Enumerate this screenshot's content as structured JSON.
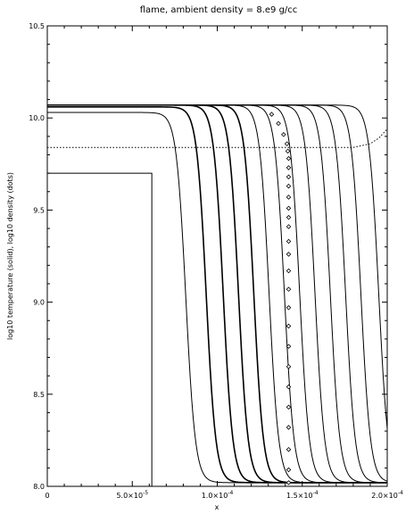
{
  "chart_data": {
    "type": "line",
    "title": "flame, ambient density = 8.e9 g/cc",
    "xlabel": "x",
    "ylabel": "log10 temperature (solid), log10 density (dots)",
    "xlim": [
      0,
      0.0002
    ],
    "ylim": [
      8.0,
      10.5
    ],
    "grid": false,
    "x_ticks": [
      {
        "value": 0,
        "mantissa": "0",
        "exponent": ""
      },
      {
        "value": 5e-05,
        "mantissa": "5.0×10",
        "exponent": "-5"
      },
      {
        "value": 0.0001,
        "mantissa": "1.0×10",
        "exponent": "-4"
      },
      {
        "value": 0.00015,
        "mantissa": "1.5×10",
        "exponent": "-4"
      },
      {
        "value": 0.0002,
        "mantissa": "2.0×10",
        "exponent": "-4"
      }
    ],
    "y_ticks": [
      {
        "value": 8.0,
        "label": "8.0"
      },
      {
        "value": 8.5,
        "label": "8.5"
      },
      {
        "value": 9.0,
        "label": "9.0"
      },
      {
        "value": 9.5,
        "label": "9.5"
      },
      {
        "value": 10.0,
        "label": "10.0"
      },
      {
        "value": 10.5,
        "label": "10.5"
      }
    ],
    "temperature_profiles": [
      {
        "front_x": 6.15e-05,
        "peak": 9.7,
        "floor": 8.0,
        "step": true
      },
      {
        "front_x": 8.15e-05,
        "peak": 10.03,
        "floor": 8.02
      },
      {
        "front_x": 9.35e-05,
        "peak": 10.06,
        "floor": 8.02
      },
      {
        "front_x": 0.0001035,
        "peak": 10.07,
        "floor": 8.02
      },
      {
        "front_x": 0.0001125,
        "peak": 10.07,
        "floor": 8.02
      },
      {
        "front_x": 0.0001215,
        "peak": 10.07,
        "floor": 8.02
      },
      {
        "front_x": 0.0001305,
        "peak": 10.07,
        "floor": 8.02
      },
      {
        "front_x": 0.0001395,
        "peak": 10.07,
        "floor": 8.02
      },
      {
        "front_x": 0.0001485,
        "peak": 10.07,
        "floor": 8.02
      },
      {
        "front_x": 0.0001575,
        "peak": 10.07,
        "floor": 8.02
      },
      {
        "front_x": 0.0001665,
        "peak": 10.07,
        "floor": 8.02
      },
      {
        "front_x": 0.0001755,
        "peak": 10.07,
        "floor": 8.02
      },
      {
        "front_x": 0.0001845,
        "peak": 10.07,
        "floor": 8.02
      },
      {
        "front_x": 0.000195,
        "peak": 10.07,
        "floor": 8.02
      }
    ],
    "density_curve": {
      "x": [
        0,
        2e-05,
        4e-05,
        6e-05,
        8e-05,
        0.0001,
        0.00012,
        0.00014,
        0.00016,
        0.00017,
        0.00018,
        0.00019,
        0.000195,
        0.0002
      ],
      "y": [
        9.84,
        9.84,
        9.84,
        9.84,
        9.84,
        9.84,
        9.84,
        9.84,
        9.84,
        9.84,
        9.84,
        9.86,
        9.89,
        9.94
      ]
    },
    "diamond_markers": {
      "x": [
        0.000132,
        0.000136,
        0.000139,
        0.000141,
        0.0001415,
        0.000142,
        0.000142,
        0.000142,
        0.000142,
        0.000142,
        0.000142,
        0.000142,
        0.000142,
        0.000142,
        0.000142,
        0.000142,
        0.000142,
        0.000142,
        0.000142,
        0.000142,
        0.000142,
        0.000142,
        0.000142,
        0.000142,
        0.000142,
        0.000142,
        0.000142
      ],
      "y": [
        10.02,
        9.97,
        9.91,
        9.86,
        9.82,
        9.78,
        9.73,
        9.68,
        9.63,
        9.57,
        9.51,
        9.46,
        9.41,
        9.33,
        9.26,
        9.17,
        9.07,
        8.97,
        8.87,
        8.76,
        8.65,
        8.54,
        8.43,
        8.32,
        8.2,
        8.09,
        8.02
      ]
    }
  }
}
